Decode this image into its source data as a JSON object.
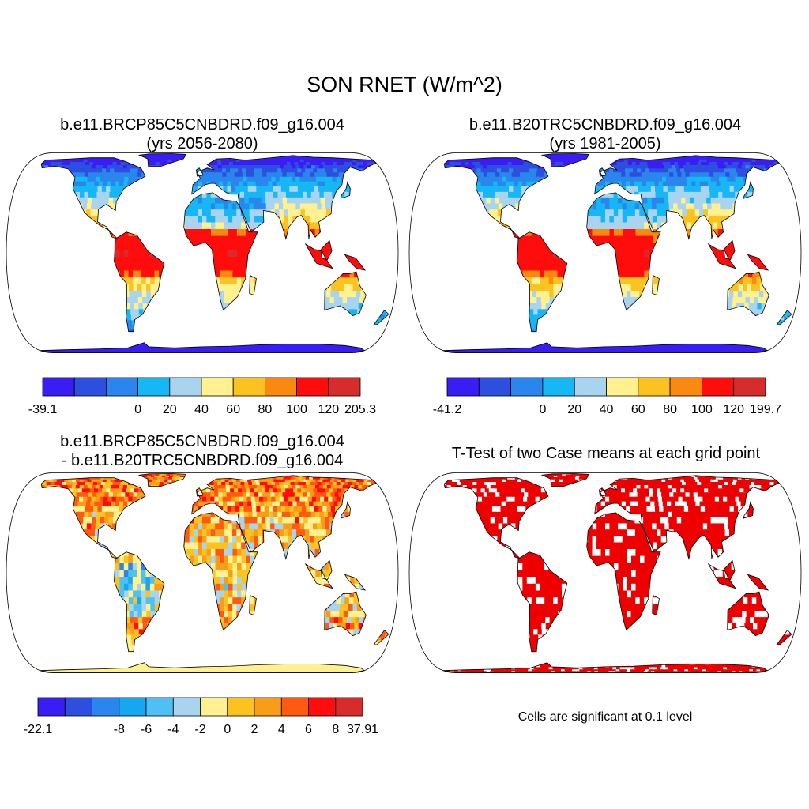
{
  "main_title": "SON RNET (W/m^2)",
  "colors": {
    "land_cmap_11": [
      "#3a1cf5",
      "#2d4fe0",
      "#2a86ec",
      "#15b7f4",
      "#a8d4f0",
      "#fff18f",
      "#fcc21f",
      "#f98a0f",
      "#ff0d0d",
      "#d72c2c"
    ],
    "diff_cmap_12": [
      "#3a1cf5",
      "#2d4fe0",
      "#2a86ec",
      "#15a7f0",
      "#4fc0f3",
      "#a8d4f0",
      "#fff18f",
      "#fcc21f",
      "#f99d18",
      "#ff5a12",
      "#ff0d0d",
      "#d72c2c"
    ],
    "significant": "#ee0000",
    "coast": "#000000"
  },
  "chart_data": [
    {
      "id": "panel-future",
      "type": "heatmap",
      "title_lines": [
        "b.e11.BRCP85C5CNBDRD.f09_g16.004",
        "(yrs 2056-2080)"
      ],
      "variable": "RNET",
      "units": "W/m^2",
      "season": "SON",
      "colorbar": {
        "labels": [
          "-39.1",
          "0",
          "20",
          "40",
          "60",
          "80",
          "100",
          "120",
          "205.3"
        ],
        "min": -39.1,
        "max": 205.3,
        "levels": [
          0,
          20,
          40,
          60,
          80,
          100,
          120
        ]
      }
    },
    {
      "id": "panel-historical",
      "type": "heatmap",
      "title_lines": [
        "b.e11.B20TRC5CNBDRD.f09_g16.004",
        "(yrs 1981-2005)"
      ],
      "variable": "RNET",
      "units": "W/m^2",
      "season": "SON",
      "colorbar": {
        "labels": [
          "-41.2",
          "0",
          "20",
          "40",
          "60",
          "80",
          "100",
          "120",
          "199.7"
        ],
        "min": -41.2,
        "max": 199.7,
        "levels": [
          0,
          20,
          40,
          60,
          80,
          100,
          120
        ]
      }
    },
    {
      "id": "panel-difference",
      "type": "heatmap",
      "title_lines": [
        "b.e11.BRCP85C5CNBDRD.f09_g16.004",
        "- b.e11.B20TRC5CNBDRD.f09_g16.004"
      ],
      "colorbar": {
        "labels": [
          "-22.1",
          "-8",
          "-6",
          "-4",
          "-2",
          "0",
          "2",
          "4",
          "6",
          "8",
          "37.91"
        ],
        "min": -22.1,
        "max": 37.91,
        "levels": [
          -8,
          -6,
          -4,
          -2,
          0,
          2,
          4,
          6,
          8
        ]
      }
    },
    {
      "id": "panel-ttest",
      "type": "heatmap",
      "title_lines": [
        "T-Test of two Case means at each grid point"
      ],
      "note": "Cells are significant at 0.1 level",
      "significance_level": 0.1
    }
  ]
}
